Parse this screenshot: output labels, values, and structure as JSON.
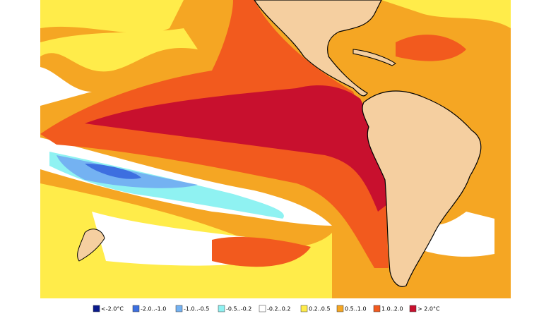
{
  "legend": {
    "items": [
      {
        "label": "<-2.0°C",
        "color": "#0a1a8c"
      },
      {
        "label": "-2.0..-1.0",
        "color": "#3d6fe0"
      },
      {
        "label": "-1.0..-0.5",
        "color": "#74b2f2"
      },
      {
        "label": "-0.5..-0.2",
        "color": "#8ff2f2"
      },
      {
        "label": "-0.2..0.2",
        "color": "#ffffff"
      },
      {
        "label": "0.2..0.5",
        "color": "#ffec4a"
      },
      {
        "label": "0.5..1.0",
        "color": "#f5a623"
      },
      {
        "label": "1.0..2.0",
        "color": "#f25a1e"
      },
      {
        "label": "> 2.0°C",
        "color": "#c8102e"
      }
    ]
  }
}
